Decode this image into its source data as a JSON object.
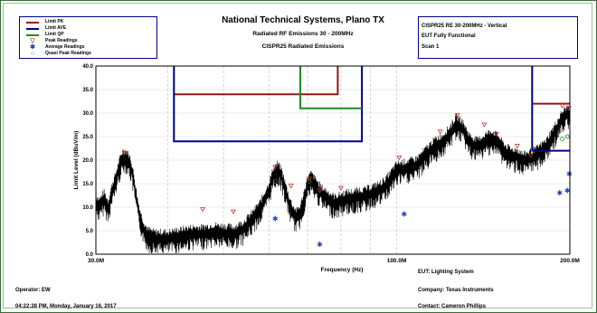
{
  "header": {
    "title": "National Technical Systems, Plano TX",
    "subtitle": "Radiated RF Emissions 30 - 200MHz",
    "subtitle2": "CISPR25 Radiated Emissions"
  },
  "legend": [
    {
      "label": "Limit PK",
      "kind": "line",
      "color": "#8b1a1a"
    },
    {
      "label": "Limit AVE",
      "kind": "line",
      "color": "#00008b"
    },
    {
      "label": "Limit QP",
      "kind": "line",
      "color": "#1f8a1f"
    },
    {
      "label": "Peak Readings",
      "kind": "glyph",
      "glyph": "▽",
      "color": "#c0392b"
    },
    {
      "label": "Average Readings",
      "kind": "glyph",
      "glyph": "✱",
      "color": "#1f3fbf"
    },
    {
      "label": "Quasi Peak Readings",
      "kind": "glyph",
      "glyph": "○",
      "color": "#1f8a1f"
    }
  ],
  "info": {
    "line1": "CISPR25 RE 30-200MHz - Vertical",
    "line2": "EUT Fully Functional",
    "line3": "Scan 1"
  },
  "footer": {
    "eut": "EUT: Lighting System",
    "operator": "Operator: EW",
    "company": "Company: Texas Instruments",
    "datetime": "04:22:28 PM, Monday, January 16, 2017",
    "contact": "Contact: Cameron Phillips"
  },
  "chart_data": {
    "type": "line",
    "xlabel": "Frequency (Hz)",
    "ylabel": "Limit Level (dBuV/m)",
    "xscale": "log",
    "xlim": [
      30,
      200
    ],
    "ylim": [
      0,
      40
    ],
    "grid": true,
    "x_tick_labels": [
      {
        "value": 30,
        "label": "30.0M"
      },
      {
        "value": 100,
        "label": "100.0M"
      },
      {
        "value": 200,
        "label": "200.0M"
      }
    ],
    "y_tick_labels": [
      "0.0",
      "5.0",
      "10.0",
      "15.0",
      "20.0",
      "25.0",
      "30.0",
      "35.0",
      "40.0"
    ],
    "y_ticks": [
      0,
      5,
      10,
      15,
      20,
      25,
      30,
      35,
      40
    ],
    "limits": [
      {
        "name": "Limit PK",
        "color": "#8b1a1a",
        "points": [
          [
            41,
            34
          ],
          [
            79,
            34
          ],
          [
            79,
            40
          ]
        ]
      },
      {
        "name": "Limit PK",
        "color": "#8b1a1a",
        "points": [
          [
            172,
            32
          ],
          [
            200,
            32
          ]
        ]
      },
      {
        "name": "Limit AVE",
        "color": "#00008b",
        "points": [
          [
            41,
            40
          ],
          [
            41,
            24
          ],
          [
            87,
            24
          ],
          [
            87,
            40
          ]
        ]
      },
      {
        "name": "Limit AVE",
        "color": "#00008b",
        "points": [
          [
            172,
            40
          ],
          [
            172,
            22
          ],
          [
            200,
            22
          ]
        ]
      },
      {
        "name": "Limit QP",
        "color": "#1f8a1f",
        "points": [
          [
            68,
            40
          ],
          [
            68,
            31
          ],
          [
            87,
            31
          ]
        ]
      }
    ],
    "emission_trace": [
      [
        30,
        11
      ],
      [
        30.5,
        10.5
      ],
      [
        31,
        12
      ],
      [
        31.5,
        10
      ],
      [
        32,
        13.5
      ],
      [
        32.5,
        16
      ],
      [
        33,
        19
      ],
      [
        33.5,
        21
      ],
      [
        34,
        20.5
      ],
      [
        34.5,
        19
      ],
      [
        35,
        15
      ],
      [
        35.5,
        10
      ],
      [
        36,
        7
      ],
      [
        36.5,
        5
      ],
      [
        37,
        4
      ],
      [
        38,
        3.5
      ],
      [
        39,
        3.5
      ],
      [
        40,
        3.5
      ],
      [
        42,
        4
      ],
      [
        44,
        4.5
      ],
      [
        46,
        4.5
      ],
      [
        48,
        5
      ],
      [
        50,
        4.8
      ],
      [
        52,
        4.5
      ],
      [
        54,
        5.5
      ],
      [
        56,
        7.5
      ],
      [
        58,
        10
      ],
      [
        60,
        14
      ],
      [
        61,
        17
      ],
      [
        62,
        18
      ],
      [
        63,
        17
      ],
      [
        64,
        14
      ],
      [
        65,
        11
      ],
      [
        66,
        9
      ],
      [
        67,
        8
      ],
      [
        68,
        9
      ],
      [
        69,
        12
      ],
      [
        70,
        15
      ],
      [
        71,
        16
      ],
      [
        72,
        15
      ],
      [
        74,
        13
      ],
      [
        76,
        12
      ],
      [
        78,
        11
      ],
      [
        80,
        11.5
      ],
      [
        82,
        12
      ],
      [
        84,
        12
      ],
      [
        86,
        12.5
      ],
      [
        88,
        12.5
      ],
      [
        90,
        13
      ],
      [
        92,
        13.5
      ],
      [
        94,
        14
      ],
      [
        96,
        15
      ],
      [
        98,
        16.5
      ],
      [
        100,
        18
      ],
      [
        104,
        18.5
      ],
      [
        108,
        19
      ],
      [
        112,
        21
      ],
      [
        116,
        23
      ],
      [
        120,
        24
      ],
      [
        124,
        26
      ],
      [
        127,
        28
      ],
      [
        130,
        27
      ],
      [
        134,
        24
      ],
      [
        138,
        23
      ],
      [
        142,
        24
      ],
      [
        146,
        25
      ],
      [
        150,
        24
      ],
      [
        154,
        22
      ],
      [
        158,
        21
      ],
      [
        162,
        21
      ],
      [
        166,
        20
      ],
      [
        170,
        20.5
      ],
      [
        174,
        21
      ],
      [
        178,
        22
      ],
      [
        182,
        23
      ],
      [
        186,
        25
      ],
      [
        190,
        27
      ],
      [
        194,
        29
      ],
      [
        198,
        30
      ],
      [
        200,
        30
      ]
    ],
    "peak_readings": [
      [
        33.6,
        21.5
      ],
      [
        46,
        9.5
      ],
      [
        52,
        9
      ],
      [
        61.5,
        18.5
      ],
      [
        65.5,
        14.5
      ],
      [
        70.5,
        16
      ],
      [
        73.5,
        13.5
      ],
      [
        80,
        14
      ],
      [
        101,
        20.5
      ],
      [
        119,
        26
      ],
      [
        127.5,
        29.5
      ],
      [
        142,
        27.5
      ],
      [
        149,
        25.5
      ],
      [
        162,
        23
      ],
      [
        171,
        21
      ],
      [
        194,
        31.5
      ],
      [
        199,
        31
      ]
    ],
    "average_readings": [
      [
        61.5,
        7.5
      ],
      [
        73.5,
        2
      ],
      [
        103,
        8.5
      ],
      [
        192,
        13
      ],
      [
        198,
        13.5
      ],
      [
        199.5,
        17
      ]
    ],
    "quasi_peak_readings": [
      [
        61.5,
        15.5
      ],
      [
        70.5,
        15.5
      ],
      [
        194,
        24.5
      ],
      [
        198,
        25
      ]
    ]
  }
}
